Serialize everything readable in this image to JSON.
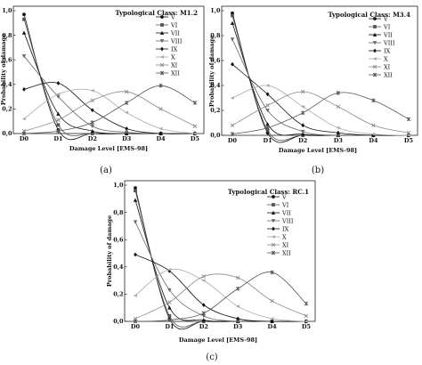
{
  "panels_caption": [
    "(a)",
    "(b)",
    "(c)"
  ],
  "chart_data": [
    {
      "type": "line",
      "title": "Typological Class: M1.2",
      "xlabel": "Damage Level [EMS-98]",
      "ylabel": "Probability of damage",
      "x_categories": [
        "D0",
        "D1",
        "D2",
        "D3",
        "D4",
        "D5"
      ],
      "ylim": [
        0,
        1.0
      ],
      "y_ticks": [
        "0,0",
        "0,2",
        "0,4",
        "0,6",
        "0,8",
        "1,0"
      ],
      "legend_position": "top-right",
      "series": [
        {
          "name": "V",
          "values": [
            0.97,
            0.03,
            0.0,
            0.0,
            0.0,
            0.0
          ]
        },
        {
          "name": "VI",
          "values": [
            0.93,
            0.07,
            0.0,
            0.0,
            0.0,
            0.0
          ]
        },
        {
          "name": "VII",
          "values": [
            0.82,
            0.16,
            0.02,
            0.0,
            0.0,
            0.0
          ]
        },
        {
          "name": "VIII",
          "values": [
            0.63,
            0.3,
            0.06,
            0.01,
            0.0,
            0.0
          ]
        },
        {
          "name": "IX",
          "values": [
            0.36,
            0.41,
            0.19,
            0.04,
            0.0,
            0.0
          ]
        },
        {
          "name": "X",
          "values": [
            0.12,
            0.32,
            0.35,
            0.17,
            0.04,
            0.0
          ]
        },
        {
          "name": "XI",
          "values": [
            0.02,
            0.11,
            0.27,
            0.34,
            0.2,
            0.06
          ]
        },
        {
          "name": "XII",
          "values": [
            0.0,
            0.02,
            0.09,
            0.25,
            0.39,
            0.25
          ]
        }
      ]
    },
    {
      "type": "line",
      "title": "Typological Class: M3.4",
      "xlabel": "Damage Level [EMS-98]",
      "ylabel": "Probability of damage",
      "x_categories": [
        "D0",
        "D1",
        "D2",
        "D3",
        "D4",
        "D5"
      ],
      "ylim": [
        0,
        1.0
      ],
      "y_ticks": [
        "0,0",
        "0,2",
        "0,4",
        "0,6",
        "0,8",
        "1,0"
      ],
      "legend_position": "top-right",
      "series": [
        {
          "name": "V",
          "values": [
            0.98,
            0.02,
            0.0,
            0.0,
            0.0,
            0.0
          ]
        },
        {
          "name": "VI",
          "values": [
            0.96,
            0.04,
            0.0,
            0.0,
            0.0,
            0.0
          ]
        },
        {
          "name": "VII",
          "values": [
            0.9,
            0.09,
            0.01,
            0.0,
            0.0,
            0.0
          ]
        },
        {
          "name": "VIII",
          "values": [
            0.77,
            0.2,
            0.03,
            0.0,
            0.0,
            0.0
          ]
        },
        {
          "name": "IX",
          "values": [
            0.57,
            0.33,
            0.08,
            0.02,
            0.0,
            0.0
          ]
        },
        {
          "name": "X",
          "values": [
            0.3,
            0.4,
            0.23,
            0.06,
            0.01,
            0.0
          ]
        },
        {
          "name": "XI",
          "values": [
            0.08,
            0.24,
            0.35,
            0.23,
            0.08,
            0.02
          ]
        },
        {
          "name": "XII",
          "values": [
            0.01,
            0.06,
            0.18,
            0.34,
            0.28,
            0.13
          ]
        }
      ]
    },
    {
      "type": "line",
      "title": "Typological Class: RC.1",
      "xlabel": "Damage Level [EMS-98]",
      "ylabel": "Probability of damage",
      "x_categories": [
        "D0",
        "D1",
        "D2",
        "D3",
        "D4",
        "D5"
      ],
      "ylim": [
        0,
        1.0
      ],
      "y_ticks": [
        "0,0",
        "0,2",
        "0,4",
        "0,6",
        "0,8",
        "1,0"
      ],
      "legend_position": "top-right",
      "series": [
        {
          "name": "V",
          "values": [
            0.98,
            0.02,
            0.0,
            0.0,
            0.0,
            0.0
          ]
        },
        {
          "name": "VI",
          "values": [
            0.96,
            0.04,
            0.0,
            0.0,
            0.0,
            0.0
          ]
        },
        {
          "name": "VII",
          "values": [
            0.89,
            0.1,
            0.01,
            0.0,
            0.0,
            0.0
          ]
        },
        {
          "name": "VIII",
          "values": [
            0.73,
            0.23,
            0.04,
            0.0,
            0.0,
            0.0
          ]
        },
        {
          "name": "IX",
          "values": [
            0.49,
            0.37,
            0.12,
            0.02,
            0.0,
            0.0
          ]
        },
        {
          "name": "X",
          "values": [
            0.19,
            0.38,
            0.3,
            0.11,
            0.02,
            0.0
          ]
        },
        {
          "name": "XI",
          "values": [
            0.02,
            0.14,
            0.33,
            0.32,
            0.15,
            0.04
          ]
        },
        {
          "name": "XII",
          "values": [
            0.0,
            0.01,
            0.06,
            0.24,
            0.36,
            0.13
          ]
        }
      ]
    }
  ]
}
